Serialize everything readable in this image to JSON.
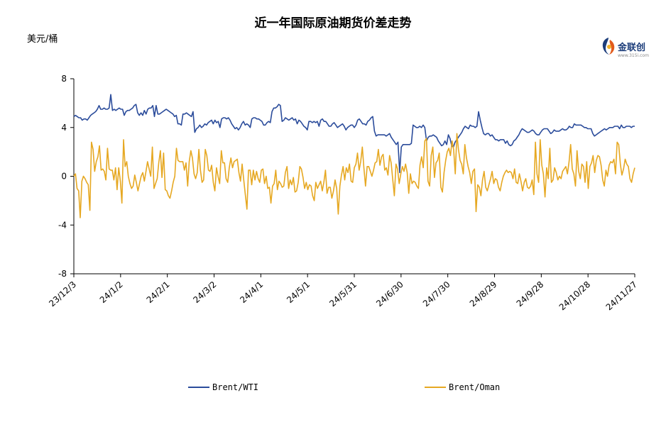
{
  "chart_data": {
    "type": "line",
    "title": "近一年国际原油期货价差走势",
    "ylabel": "美元/桶",
    "ylim": [
      -8,
      8
    ],
    "yticks": [
      "8",
      "4",
      "0",
      "-4",
      "-8"
    ],
    "x_tick_labels": [
      "23/12/3",
      "24/1/2",
      "24/2/1",
      "24/3/2",
      "24/4/1",
      "24/5/1",
      "24/5/31",
      "24/6/30",
      "24/7/30",
      "24/8/29",
      "24/9/28",
      "24/10/28",
      "24/11/27"
    ],
    "grid": false,
    "legend_position": "bottom",
    "colors": {
      "wti": "#2b4c9b",
      "oman": "#e6a822"
    },
    "series": [
      {
        "name": "Brent/WTI",
        "color": "#2b4c9b",
        "values": [
          4.9,
          5.0,
          4.9,
          4.8,
          4.8,
          4.6,
          4.7,
          4.7,
          4.6,
          4.8,
          5.0,
          5.1,
          5.2,
          5.3,
          5.5,
          5.8,
          5.5,
          5.5,
          5.6,
          5.5,
          5.5,
          5.6,
          6.7,
          5.4,
          5.5,
          5.4,
          5.5,
          5.6,
          5.5,
          5.5,
          5.0,
          5.3,
          5.4,
          5.4,
          5.5,
          5.6,
          5.8,
          5.9,
          5.2,
          5.0,
          5.2,
          5.0,
          5.4,
          5.1,
          5.5,
          5.6,
          5.6,
          5.8,
          4.9,
          5.8,
          5.1,
          5.1,
          5.2,
          5.3,
          5.4,
          5.5,
          5.4,
          5.3,
          5.2,
          5.1,
          4.9,
          5.0,
          4.3,
          4.3,
          4.2,
          5.1,
          5.1,
          5.2,
          5.1,
          5.0,
          4.9,
          5.3,
          3.6,
          3.9,
          4.0,
          4.2,
          4.0,
          4.1,
          4.3,
          4.2,
          4.4,
          4.5,
          4.6,
          4.3,
          4.6,
          4.4,
          4.5,
          4.0,
          4.7,
          4.8,
          4.8,
          4.7,
          4.8,
          4.6,
          4.3,
          4.1,
          3.9,
          4.0,
          3.8,
          4.0,
          4.3,
          4.5,
          4.2,
          4.3,
          4.2,
          4.0,
          4.7,
          4.8,
          4.8,
          4.7,
          4.7,
          4.6,
          4.5,
          4.2,
          4.2,
          4.4,
          4.5,
          4.4,
          5.3,
          5.6,
          5.6,
          5.7,
          5.9,
          5.8,
          4.5,
          4.6,
          4.8,
          4.7,
          4.6,
          4.7,
          4.8,
          4.6,
          4.7,
          4.3,
          4.6,
          4.5,
          4.3,
          4.1,
          4.0,
          3.8,
          4.5,
          4.5,
          4.4,
          4.5,
          4.4,
          4.5,
          4.1,
          4.6,
          4.7,
          4.5,
          4.5,
          4.3,
          4.1,
          4.1,
          4.3,
          4.4,
          4.2,
          4.0,
          4.1,
          4.2,
          4.3,
          4.1,
          3.8,
          4.0,
          4.1,
          4.2,
          4.2,
          4.0,
          4.2,
          4.6,
          4.7,
          4.5,
          4.3,
          4.3,
          4.2,
          4.5,
          4.6,
          4.8,
          4.9,
          3.7,
          3.3,
          3.4,
          3.4,
          3.4,
          3.4,
          3.4,
          3.3,
          3.4,
          3.5,
          3.2,
          3.0,
          2.8,
          2.6,
          2.8,
          0.3,
          2.4,
          2.6,
          2.6,
          2.6,
          2.6,
          2.6,
          2.7,
          4.2,
          4.1,
          4.0,
          4.0,
          4.1,
          4.0,
          4.2,
          4.0,
          2.9,
          3.2,
          3.3,
          3.3,
          3.4,
          3.3,
          3.2,
          2.9,
          2.7,
          2.5,
          2.6,
          2.9,
          2.6,
          3.4,
          3.1,
          2.5,
          2.4,
          2.8,
          3.0,
          3.2,
          3.4,
          3.6,
          3.9,
          4.1,
          4.0,
          3.9,
          4.2,
          4.1,
          4.1,
          4.0,
          4.1,
          5.3,
          4.6,
          4.0,
          3.5,
          3.4,
          3.5,
          3.5,
          3.3,
          3.4,
          3.2,
          3.0,
          3.0,
          2.9,
          3.0,
          3.0,
          3.0,
          2.7,
          2.9,
          2.6,
          2.5,
          2.6,
          2.9,
          3.0,
          3.2,
          3.4,
          3.7,
          3.9,
          3.8,
          3.7,
          3.6,
          3.6,
          3.7,
          3.8,
          3.7,
          3.5,
          3.4,
          3.4,
          3.6,
          3.8,
          3.9,
          3.9,
          3.9,
          3.7,
          3.5,
          3.6,
          3.8,
          3.7,
          3.7,
          3.7,
          3.8,
          3.9,
          3.8,
          3.8,
          3.9,
          4.1,
          4.0,
          4.0,
          4.3,
          4.2,
          4.2,
          4.2,
          4.2,
          4.1,
          4.0,
          4.0,
          3.9,
          3.9,
          3.9,
          3.5,
          3.3,
          3.4,
          3.5,
          3.6,
          3.7,
          3.8,
          3.9,
          3.8,
          3.9,
          4.0,
          4.0,
          4.0,
          4.1,
          4.1,
          4.1,
          3.9,
          4.2,
          4.0,
          4.0,
          4.1,
          4.1,
          4.1,
          4.0,
          4.1,
          4.1
        ]
      },
      {
        "name": "Brent/Oman",
        "color": "#e6a822",
        "values": [
          0.0,
          0.2,
          -1.0,
          -1.2,
          -3.4,
          -0.4,
          0.0,
          -0.2,
          -0.5,
          -0.7,
          -2.8,
          2.8,
          2.2,
          0.4,
          1.2,
          1.6,
          2.5,
          0.5,
          0.6,
          0.4,
          -0.3,
          2.3,
          0.6,
          0.5,
          0.5,
          -0.3,
          0.7,
          -1.1,
          0.7,
          -0.4,
          -2.2,
          3.0,
          0.8,
          1.2,
          0.0,
          -0.6,
          -1.0,
          -0.8,
          0.1,
          -0.5,
          -1.2,
          -0.6,
          0.0,
          0.3,
          -0.4,
          0.4,
          1.2,
          0.6,
          0.0,
          2.4,
          -1.0,
          -0.6,
          -0.2,
          1.1,
          2.1,
          -0.1,
          1.9,
          -1.1,
          -1.2,
          -1.6,
          -1.8,
          -1.2,
          -0.5,
          0.0,
          2.3,
          1.3,
          1.2,
          1.2,
          1.2,
          0.5,
          1.1,
          -0.8,
          1.2,
          2.1,
          1.5,
          0.2,
          -0.2,
          0.3,
          2.2,
          0.5,
          -0.5,
          -0.3,
          2.2,
          1.7,
          0.5,
          0.4,
          0.9,
          -0.5,
          -1.2,
          0.7,
          0.0,
          -0.6,
          2.1,
          1.1,
          1.1,
          -0.2,
          -0.5,
          0.7,
          1.5,
          0.7,
          1.2,
          1.3,
          1.4,
          0.3,
          -0.4,
          1.0,
          -0.3,
          -1.5,
          -2.7,
          0.5,
          0.5,
          -0.7,
          0.5,
          -0.3,
          0.4,
          -0.2,
          -0.5,
          0.5,
          0.6,
          -0.6,
          0.0,
          -1.0,
          -0.9,
          -2.2,
          -0.8,
          -0.6,
          0.5,
          -1.1,
          -0.4,
          -0.6,
          -0.9,
          -0.8,
          0.3,
          0.8,
          -1.0,
          -0.3,
          -0.7,
          -0.1,
          -1.3,
          -1.2,
          -0.5,
          0.8,
          0.6,
          -0.1,
          -1.0,
          -0.5,
          -1.1,
          -0.7,
          -0.8,
          -1.6,
          -2.0,
          -0.5,
          -1.0,
          -0.7,
          -0.4,
          -1.2,
          -0.5,
          0.5,
          -1.4,
          -0.9,
          -0.9,
          -1.8,
          -1.2,
          -0.3,
          -1.0,
          -3.1,
          -0.8,
          0.1,
          0.8,
          -0.3,
          0.7,
          0.3,
          1.0,
          -0.4,
          -0.5,
          0.7,
          1.0,
          1.9,
          0.5,
          1.2,
          2.4,
          0.7,
          -0.8,
          0.8,
          0.8,
          0.4,
          0.0,
          0.5,
          1.1,
          1.2,
          2.2,
          0.9,
          1.6,
          1.8,
          0.5,
          0.7,
          0.1,
          1.7,
          1.1,
          -0.3,
          -1.6,
          1.0,
          0.6,
          -0.6,
          0.2,
          0.8,
          0.4,
          1.0,
          0.3,
          -1.4,
          0.2,
          -0.6,
          -0.4,
          -0.5,
          -0.8,
          -1.0,
          0.9,
          1.6,
          0.7,
          2.9,
          3.1,
          -0.4,
          -0.8,
          1.7,
          2.4,
          -0.1,
          1.1,
          1.3,
          1.9,
          -0.9,
          -1.3,
          0.3,
          1.3,
          2.0,
          2.3,
          1.7,
          2.9,
          2.2,
          0.2,
          3.5,
          2.2,
          1.3,
          1.0,
          0.2,
          2.6,
          1.5,
          0.8,
          0.3,
          -0.6,
          0.4,
          0.6,
          -2.9,
          -0.7,
          -0.9,
          -1.6,
          -0.3,
          0.4,
          -0.9,
          -1.2,
          -0.7,
          -0.2,
          0.4,
          -0.6,
          -0.2,
          -0.3,
          -0.9,
          -1.2,
          -0.5,
          0.0,
          0.3,
          0.5,
          0.3,
          0.4,
          0.3,
          -0.2,
          0.6,
          -0.5,
          -0.6,
          0.2,
          -0.4,
          -1.2,
          -0.5,
          -0.2,
          -0.9,
          -1.0,
          -0.8,
          -0.3,
          -1.5,
          2.8,
          0.2,
          -0.5,
          3.0,
          0.9,
          0.2,
          -1.7,
          0.7,
          -0.2,
          2.3,
          -0.5,
          -0.3,
          0.7,
          0.3,
          -0.3,
          0.0,
          -0.2,
          0.4,
          0.6,
          0.8,
          0.2,
          1.2,
          2.6,
          0.6,
          0.2,
          -0.8,
          2.1,
          0.4,
          -0.2,
          1.0,
          0.8,
          -0.5,
          1.2,
          -1.0,
          0.8,
          1.1,
          1.7,
          0.3,
          1.3,
          1.7,
          1.6,
          0.9,
          -0.3,
          -0.8,
          0.5,
          0.0,
          0.9,
          1.2,
          1.1,
          1.4,
          0.2,
          2.8,
          2.6,
          1.0,
          0.1,
          0.6,
          1.4,
          1.0,
          0.8,
          -0.2,
          -0.5,
          0.2,
          0.7
        ]
      }
    ]
  },
  "logo": {
    "text": "金联创",
    "sub": "www.315i.com"
  }
}
